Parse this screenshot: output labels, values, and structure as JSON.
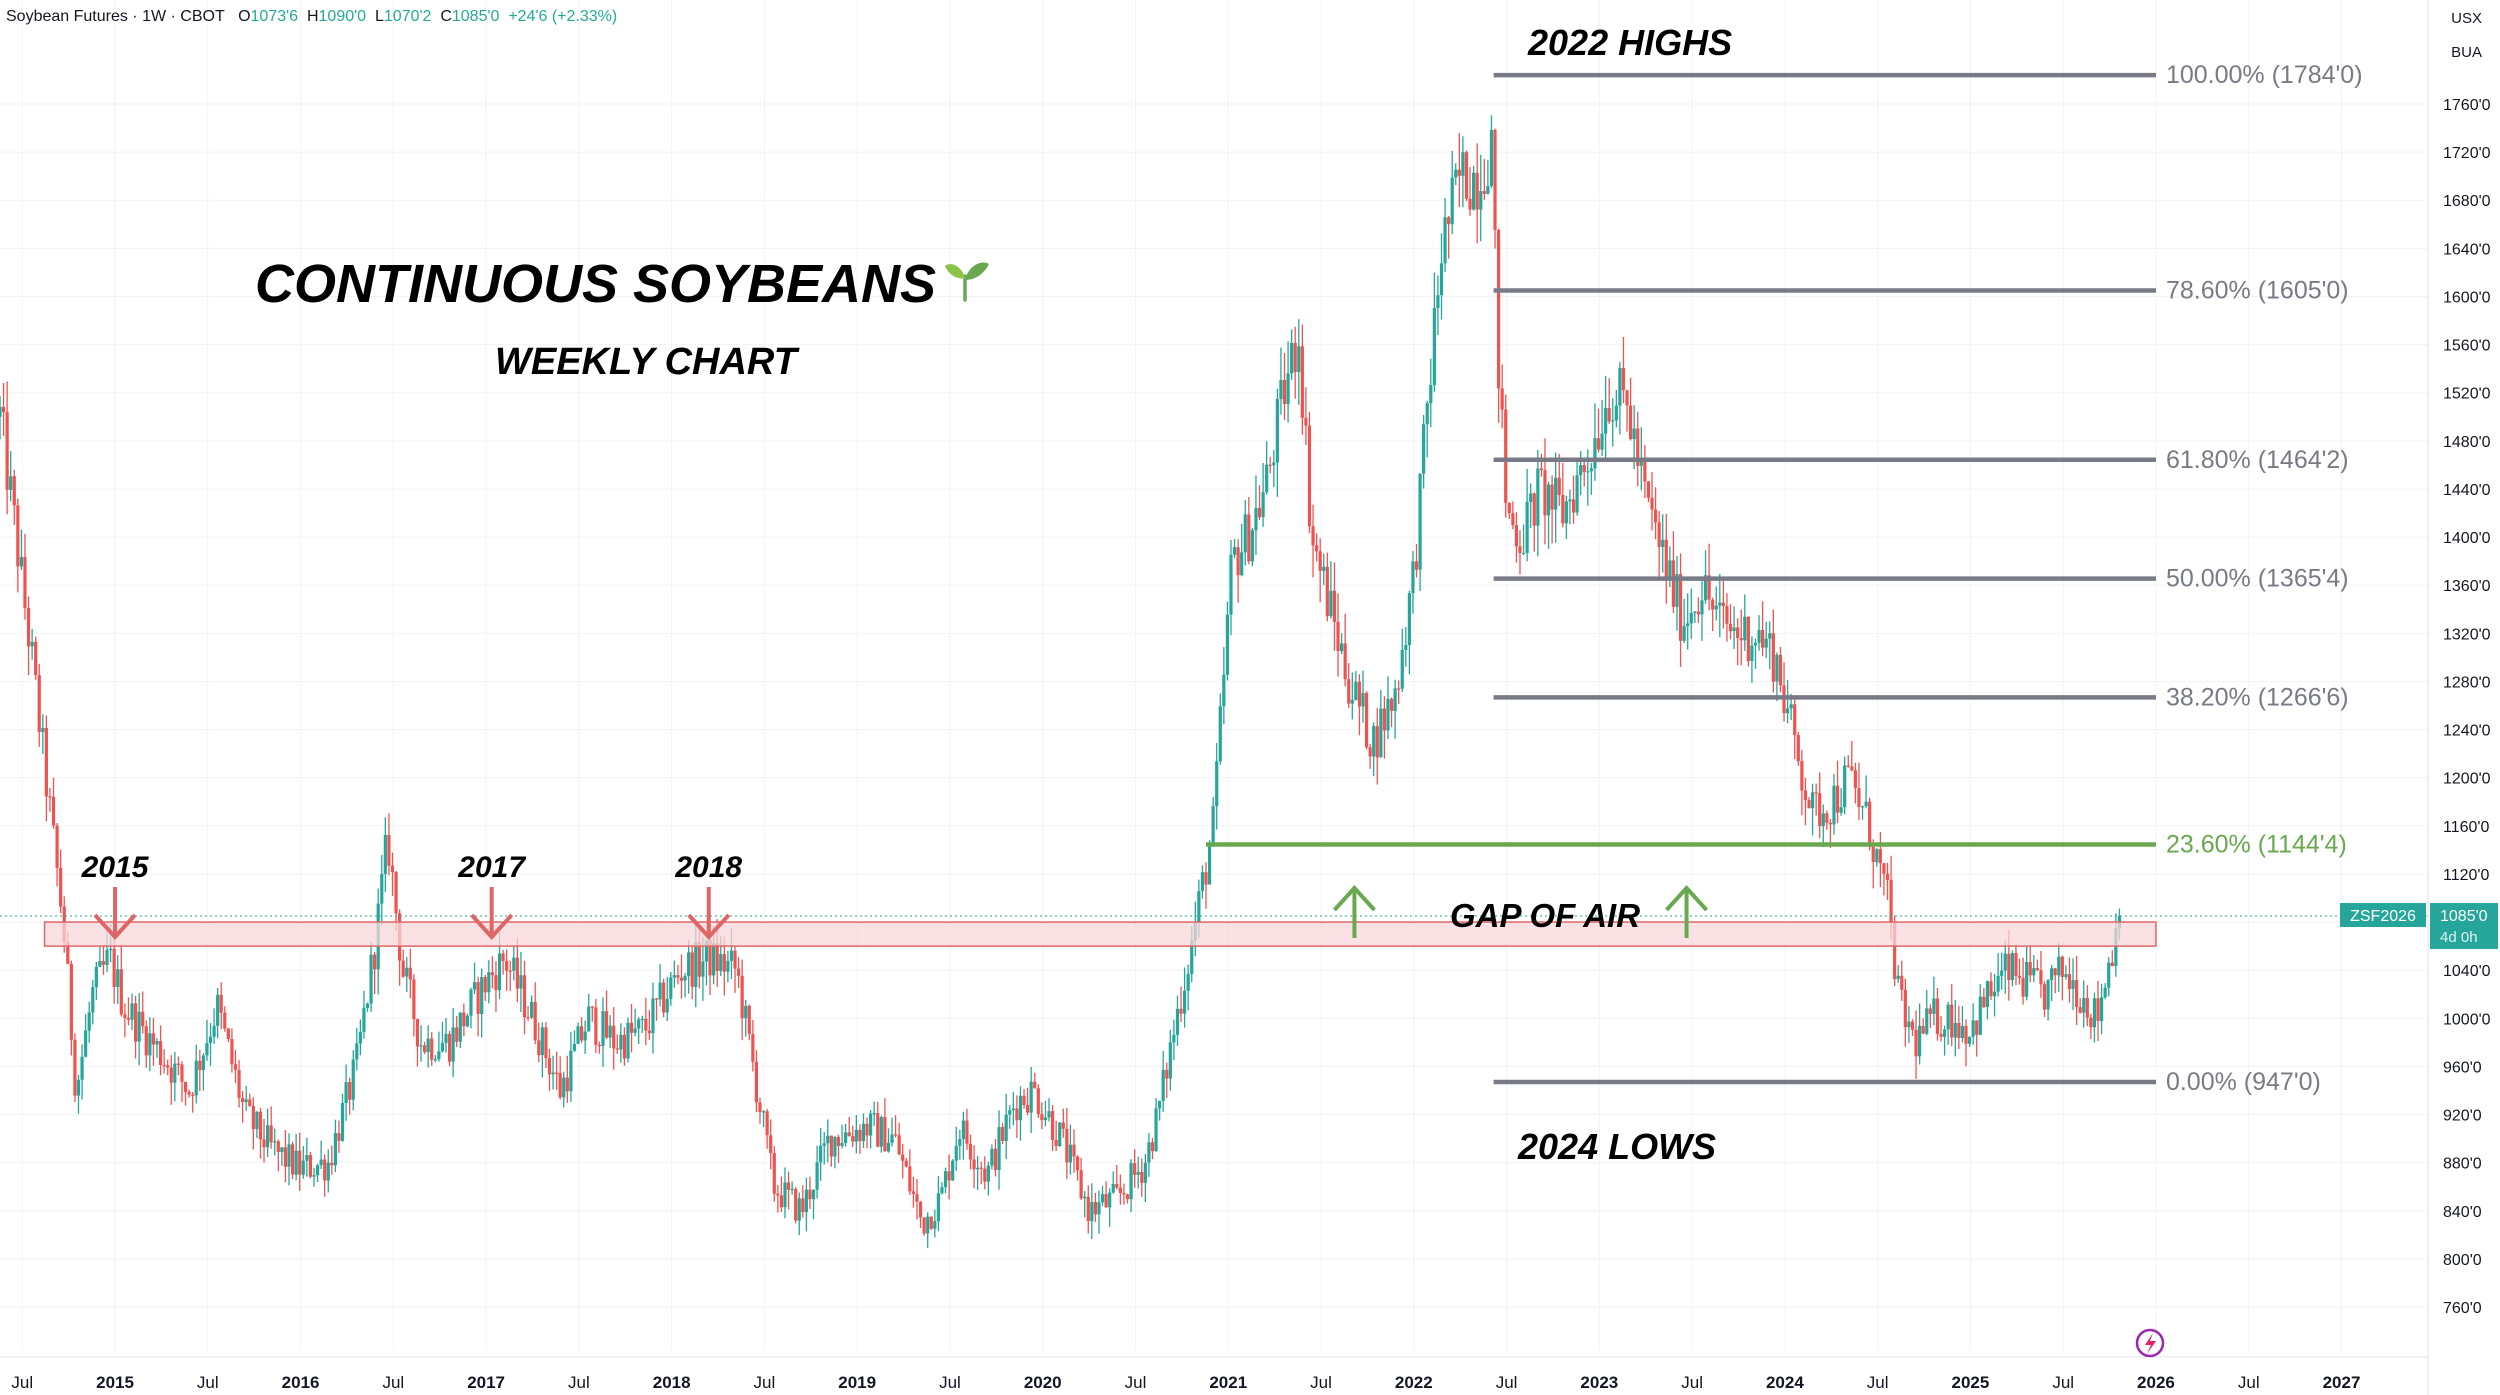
{
  "header": {
    "symbol": "Soybean Futures · 1W · CBOT",
    "o_label": "O",
    "o_value": "1073'6",
    "h_label": "H",
    "h_value": "1090'0",
    "l_label": "L",
    "l_value": "1070'2",
    "c_label": "C",
    "c_value": "1085'0",
    "change": "+24'6 (+2.33%)"
  },
  "scale": {
    "currency": "USX",
    "unit": "BUA"
  },
  "colors": {
    "up": "#26a69a",
    "down": "#ef5350",
    "fib": "#787b86",
    "green_line": "#6aa84f",
    "zone_fill": "#f8d7da",
    "zone_border": "#e06666",
    "arrow_red": "#e06666",
    "arrow_green": "#6aa84f"
  },
  "chart_data": {
    "type": "candlestick",
    "title": "CONTINUOUS SOYBEANS",
    "subtitle": "WEEKLY CHART",
    "ylim": [
      750,
      1810
    ],
    "y_ticks": [
      760,
      800,
      840,
      880,
      920,
      960,
      1000,
      1040,
      1080,
      1120,
      1160,
      1200,
      1240,
      1280,
      1320,
      1360,
      1400,
      1440,
      1480,
      1520,
      1560,
      1600,
      1640,
      1680,
      1720,
      1760
    ],
    "y_tick_labels": [
      "760'0",
      "800'0",
      "840'0",
      "880'0",
      "920'0",
      "960'0",
      "1000'0",
      "1040'0",
      "1080'0",
      "1120'0",
      "1160'0",
      "1200'0",
      "1240'0",
      "1280'0",
      "1320'0",
      "1360'0",
      "1400'0",
      "1440'0",
      "1480'0",
      "1520'0",
      "1560'0",
      "1600'0",
      "1640'0",
      "1680'0",
      "1720'0",
      "1760'0"
    ],
    "x_range": [
      2014.38,
      2027.45
    ],
    "x_ticks": [
      {
        "t": 2014.5,
        "label": "Jul",
        "bold": false
      },
      {
        "t": 2015.0,
        "label": "2015",
        "bold": true
      },
      {
        "t": 2015.5,
        "label": "Jul",
        "bold": false
      },
      {
        "t": 2016.0,
        "label": "2016",
        "bold": true
      },
      {
        "t": 2016.5,
        "label": "Jul",
        "bold": false
      },
      {
        "t": 2017.0,
        "label": "2017",
        "bold": true
      },
      {
        "t": 2017.5,
        "label": "Jul",
        "bold": false
      },
      {
        "t": 2018.0,
        "label": "2018",
        "bold": true
      },
      {
        "t": 2018.5,
        "label": "Jul",
        "bold": false
      },
      {
        "t": 2019.0,
        "label": "2019",
        "bold": true
      },
      {
        "t": 2019.5,
        "label": "Jul",
        "bold": false
      },
      {
        "t": 2020.0,
        "label": "2020",
        "bold": true
      },
      {
        "t": 2020.5,
        "label": "Jul",
        "bold": false
      },
      {
        "t": 2021.0,
        "label": "2021",
        "bold": true
      },
      {
        "t": 2021.5,
        "label": "Jul",
        "bold": false
      },
      {
        "t": 2022.0,
        "label": "2022",
        "bold": true
      },
      {
        "t": 2022.5,
        "label": "Jul",
        "bold": false
      },
      {
        "t": 2023.0,
        "label": "2023",
        "bold": true
      },
      {
        "t": 2023.5,
        "label": "Jul",
        "bold": false
      },
      {
        "t": 2024.0,
        "label": "2024",
        "bold": true
      },
      {
        "t": 2024.5,
        "label": "Jul",
        "bold": false
      },
      {
        "t": 2025.0,
        "label": "2025",
        "bold": true
      },
      {
        "t": 2025.5,
        "label": "Jul",
        "bold": false
      },
      {
        "t": 2026.0,
        "label": "2026",
        "bold": true
      },
      {
        "t": 2026.5,
        "label": "Jul",
        "bold": false
      },
      {
        "t": 2027.0,
        "label": "2027",
        "bold": true
      }
    ],
    "price_path": [
      [
        2014.38,
        1500
      ],
      [
        2014.45,
        1420
      ],
      [
        2014.55,
        1300
      ],
      [
        2014.65,
        1170
      ],
      [
        2014.72,
        1080
      ],
      [
        2014.79,
        940
      ],
      [
        2014.88,
        1020
      ],
      [
        2014.97,
        1050
      ],
      [
        2015.05,
        1010
      ],
      [
        2015.2,
        980
      ],
      [
        2015.4,
        940
      ],
      [
        2015.55,
        1010
      ],
      [
        2015.7,
        920
      ],
      [
        2015.85,
        890
      ],
      [
        2016.0,
        875
      ],
      [
        2016.15,
        880
      ],
      [
        2016.3,
        960
      ],
      [
        2016.4,
        1060
      ],
      [
        2016.47,
        1150
      ],
      [
        2016.55,
        1040
      ],
      [
        2016.65,
        980
      ],
      [
        2016.8,
        980
      ],
      [
        2017.0,
        1030
      ],
      [
        2017.1,
        1050
      ],
      [
        2017.25,
        1000
      ],
      [
        2017.4,
        940
      ],
      [
        2017.55,
        1000
      ],
      [
        2017.7,
        980
      ],
      [
        2017.85,
        990
      ],
      [
        2018.05,
        1040
      ],
      [
        2018.2,
        1050
      ],
      [
        2018.35,
        1040
      ],
      [
        2018.45,
        950
      ],
      [
        2018.55,
        860
      ],
      [
        2018.7,
        840
      ],
      [
        2018.85,
        900
      ],
      [
        2019.05,
        910
      ],
      [
        2019.2,
        900
      ],
      [
        2019.35,
        830
      ],
      [
        2019.45,
        850
      ],
      [
        2019.55,
        910
      ],
      [
        2019.7,
        870
      ],
      [
        2019.85,
        930
      ],
      [
        2019.95,
        940
      ],
      [
        2020.1,
        900
      ],
      [
        2020.25,
        840
      ],
      [
        2020.4,
        850
      ],
      [
        2020.55,
        880
      ],
      [
        2020.62,
        920
      ],
      [
        2020.72,
        1000
      ],
      [
        2020.8,
        1060
      ],
      [
        2020.92,
        1160
      ],
      [
        2021.02,
        1380
      ],
      [
        2021.1,
        1400
      ],
      [
        2021.2,
        1440
      ],
      [
        2021.3,
        1520
      ],
      [
        2021.38,
        1570
      ],
      [
        2021.45,
        1400
      ],
      [
        2021.55,
        1340
      ],
      [
        2021.65,
        1280
      ],
      [
        2021.78,
        1230
      ],
      [
        2021.9,
        1270
      ],
      [
        2022.0,
        1370
      ],
      [
        2022.08,
        1520
      ],
      [
        2022.15,
        1640
      ],
      [
        2022.25,
        1700
      ],
      [
        2022.35,
        1700
      ],
      [
        2022.42,
        1730
      ],
      [
        2022.45,
        1560
      ],
      [
        2022.5,
        1420
      ],
      [
        2022.58,
        1400
      ],
      [
        2022.68,
        1440
      ],
      [
        2022.8,
        1420
      ],
      [
        2022.95,
        1470
      ],
      [
        2023.05,
        1520
      ],
      [
        2023.15,
        1510
      ],
      [
        2023.25,
        1430
      ],
      [
        2023.35,
        1380
      ],
      [
        2023.45,
        1330
      ],
      [
        2023.55,
        1360
      ],
      [
        2023.65,
        1330
      ],
      [
        2023.75,
        1320
      ],
      [
        2023.85,
        1320
      ],
      [
        2023.95,
        1300
      ],
      [
        2024.05,
        1230
      ],
      [
        2024.15,
        1170
      ],
      [
        2024.25,
        1180
      ],
      [
        2024.35,
        1200
      ],
      [
        2024.45,
        1160
      ],
      [
        2024.55,
        1100
      ],
      [
        2024.62,
        1010
      ],
      [
        2024.7,
        980
      ],
      [
        2024.8,
        1000
      ],
      [
        2024.9,
        1000
      ],
      [
        2025.0,
        990
      ],
      [
        2025.1,
        1020
      ],
      [
        2025.2,
        1040
      ],
      [
        2025.3,
        1030
      ],
      [
        2025.4,
        1020
      ],
      [
        2025.5,
        1040
      ],
      [
        2025.6,
        1020
      ],
      [
        2025.68,
        1000
      ],
      [
        2025.78,
        1070
      ],
      [
        2025.82,
        1085
      ]
    ],
    "fibonacci_levels": [
      {
        "price": 1784,
        "label": "100.00% (1784'0)"
      },
      {
        "price": 1605,
        "label": "78.60% (1605'0)"
      },
      {
        "price": 1464.25,
        "label": "61.80% (1464'2)"
      },
      {
        "price": 1365.5,
        "label": "50.00% (1365'4)"
      },
      {
        "price": 1266.75,
        "label": "38.20% (1266'6)"
      },
      {
        "price": 1144.5,
        "label": "23.60% (1144'4)",
        "color": "green"
      },
      {
        "price": 947,
        "label": "0.00% (947'0)"
      }
    ],
    "fib_x_start": 2022.43,
    "fib_x_end": 2026.0,
    "green_line_x_start": 2020.88,
    "resistance_zone": {
      "x_start": 2014.62,
      "x_end": 2026.0,
      "top": 1080,
      "bottom": 1060
    },
    "current_price_line": 1085,
    "annotations": {
      "highs": "2022 HIGHS",
      "lows": "2024 LOWS",
      "gap": "GAP OF AIR",
      "year_marks": [
        {
          "label": "2015",
          "t": 2015.0
        },
        {
          "label": "2017",
          "t": 2017.03
        },
        {
          "label": "2018",
          "t": 2018.2
        }
      ],
      "gap_arrows_t": [
        2021.68,
        2023.47
      ]
    },
    "price_tag": {
      "symbol": "ZSF2026",
      "price": "1085'0",
      "countdown": "4d 0h"
    }
  }
}
